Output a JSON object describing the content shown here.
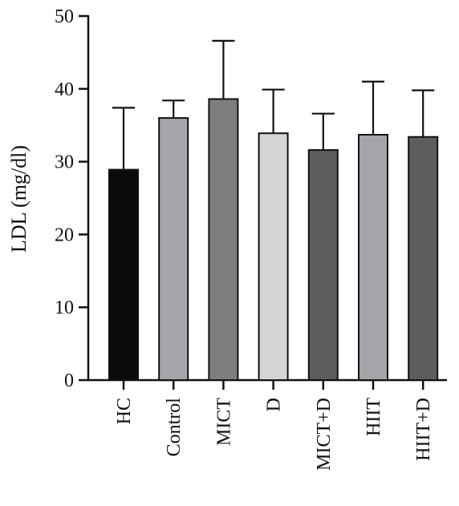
{
  "chart_data": {
    "type": "bar",
    "title": "",
    "xlabel": "",
    "ylabel": "LDL (mg/dl)",
    "ylim": [
      0,
      50
    ],
    "yticks": [
      0,
      10,
      20,
      30,
      40,
      50
    ],
    "categories": [
      "HC",
      "Control",
      "MICT",
      "D",
      "MICT+D",
      "HIIT",
      "HIIT+D"
    ],
    "values": [
      28.9,
      36.0,
      38.6,
      33.9,
      31.6,
      33.7,
      33.4
    ],
    "error_upper": [
      8.5,
      2.4,
      8.0,
      6.0,
      5.0,
      7.3,
      6.4
    ],
    "bar_colors": [
      "#0a0a0a",
      "#a3a5aa",
      "#7d7e80",
      "#d3d4d6",
      "#5c5d5f",
      "#a3a5aa",
      "#5c5d5f"
    ],
    "grid": false,
    "legend": "none"
  }
}
